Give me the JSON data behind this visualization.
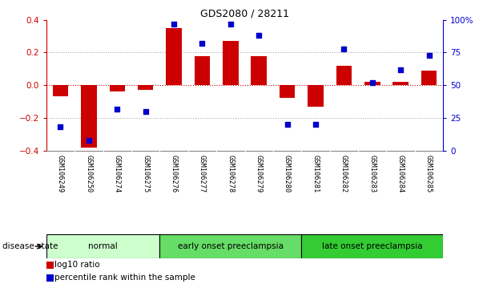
{
  "title": "GDS2080 / 28211",
  "samples": [
    "GSM106249",
    "GSM106250",
    "GSM106274",
    "GSM106275",
    "GSM106276",
    "GSM106277",
    "GSM106278",
    "GSM106279",
    "GSM106280",
    "GSM106281",
    "GSM106282",
    "GSM106283",
    "GSM106284",
    "GSM106285"
  ],
  "log10_ratio": [
    -0.07,
    -0.38,
    -0.04,
    -0.03,
    0.35,
    0.18,
    0.27,
    0.18,
    -0.08,
    -0.13,
    0.12,
    0.02,
    0.02,
    0.09
  ],
  "percentile_rank": [
    18,
    8,
    32,
    30,
    97,
    82,
    97,
    88,
    20,
    20,
    78,
    52,
    62,
    73
  ],
  "groups": [
    {
      "label": "normal",
      "start": 0,
      "end": 4,
      "color": "#ccffcc"
    },
    {
      "label": "early onset preeclampsia",
      "start": 4,
      "end": 9,
      "color": "#66dd66"
    },
    {
      "label": "late onset preeclampsia",
      "start": 9,
      "end": 14,
      "color": "#33cc33"
    }
  ],
  "left_axis_color": "#cc0000",
  "right_axis_color": "#0000cc",
  "bar_color": "#cc0000",
  "dot_color": "#0000cc",
  "ylim_left": [
    -0.4,
    0.4
  ],
  "ylim_right": [
    0,
    100
  ],
  "yticks_left": [
    -0.4,
    -0.2,
    0.0,
    0.2,
    0.4
  ],
  "yticks_right": [
    0,
    25,
    50,
    75,
    100
  ],
  "ytick_labels_right": [
    "0",
    "25",
    "50",
    "75",
    "100%"
  ],
  "dotted_line_color": "#aaaaaa",
  "zero_line_color": "#cc0000",
  "background_color": "#ffffff",
  "legend_items": [
    "log10 ratio",
    "percentile rank within the sample"
  ],
  "sample_box_color": "#cccccc",
  "sample_box_border_color": "#888888"
}
